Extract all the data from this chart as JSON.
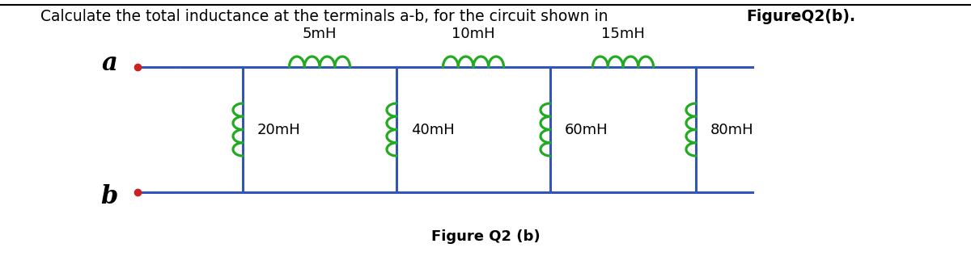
{
  "title_normal": "Calculate the total inductance at the terminals a-b, for the circuit shown in ",
  "title_bold": "FigureQ2(b).",
  "figure_caption": "Figure Q2 (b)",
  "bg_color": "#ffffff",
  "wire_color": "#3355bb",
  "inductor_color": "#22aa22",
  "terminal_color": "#cc2222",
  "text_color": "#000000",
  "label_color": "#000000",
  "series_inductors": [
    "5mH",
    "10mH",
    "15mH"
  ],
  "parallel_inductors": [
    "20mH",
    "40mH",
    "60mH",
    "80mH"
  ],
  "title_fontsize": 13.5,
  "caption_fontsize": 13,
  "label_fontsize": 22,
  "inductor_label_fontsize": 12
}
